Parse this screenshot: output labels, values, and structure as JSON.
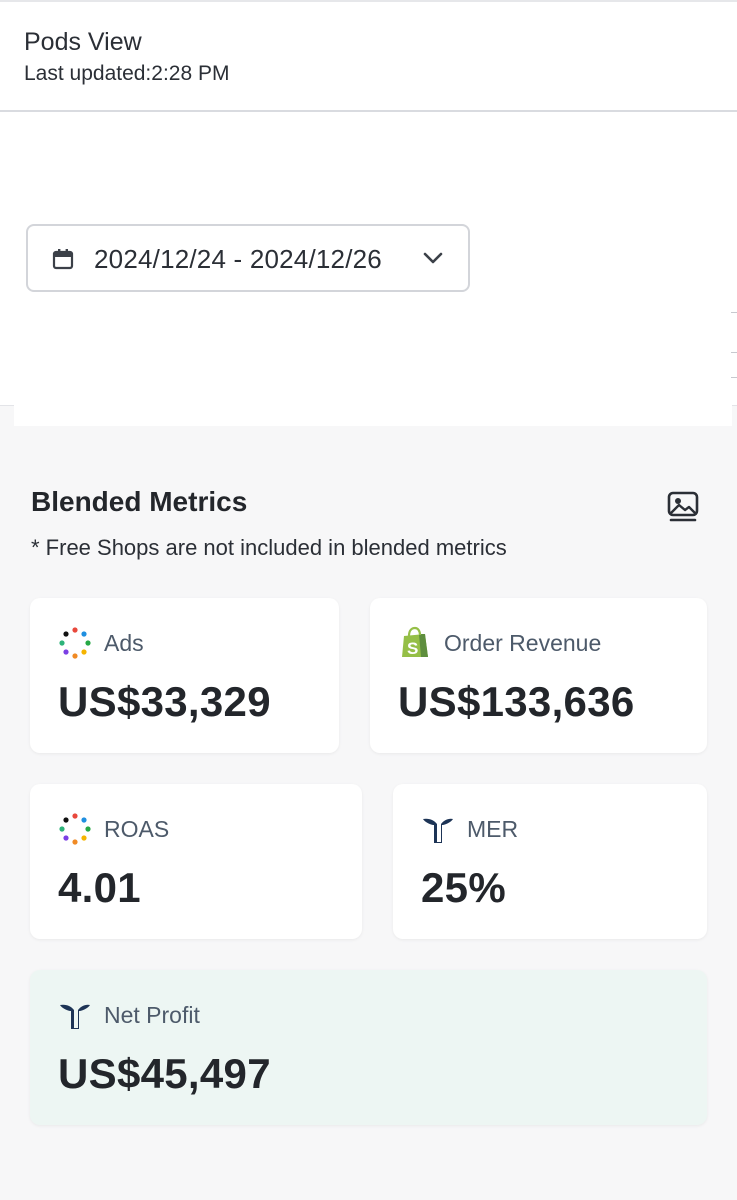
{
  "header": {
    "title": "Pods View",
    "last_updated": "Last updated:2:28 PM"
  },
  "filters": {
    "date_range": "2024/12/24 - 2024/12/26"
  },
  "blended": {
    "title": "Blended Metrics",
    "note": "* Free Shops are not included in blended metrics"
  },
  "metrics": {
    "ads": {
      "label": "Ads",
      "value": "US$33,329",
      "icon": "ads-dots-icon"
    },
    "order_revenue": {
      "label": "Order Revenue",
      "value": "US$133,636",
      "icon": "shopify-bag-icon"
    },
    "roas": {
      "label": "ROAS",
      "value": "4.01",
      "icon": "ads-dots-icon"
    },
    "mer": {
      "label": "MER",
      "value": "25%",
      "icon": "brand-t-icon"
    },
    "net_profit": {
      "label": "Net Profit",
      "value": "US$45,497",
      "icon": "brand-t-icon"
    }
  },
  "colors": {
    "shopify_green": "#95bf47",
    "brand_navy": "#1d3456",
    "profit_card_bg": "#edf6f3"
  }
}
